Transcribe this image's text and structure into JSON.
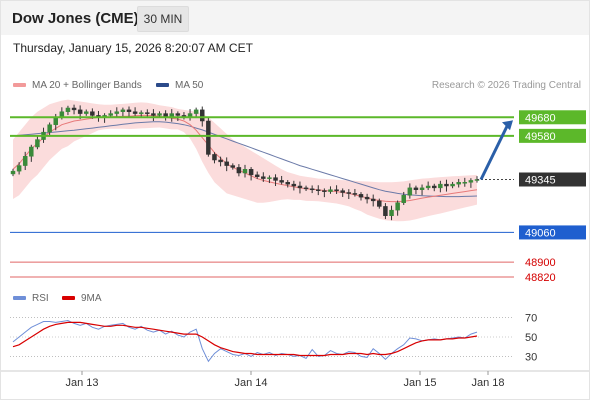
{
  "header": {
    "title": "Dow Jones (CME)",
    "timeframe": "30 MIN",
    "datetime": "Thursday, January 15, 2026 8:20:07 AM CET"
  },
  "legend": {
    "ma_bb": "MA 20 + Bollinger Bands",
    "ma50": "MA 50",
    "credit": "Research © 2026 Trading Central"
  },
  "rsi_legend": {
    "rsi": "RSI",
    "ma": "9MA"
  },
  "colors": {
    "up": "#3a8a3a",
    "down": "#333333",
    "resistance": "#5cb82a",
    "support": "#1f5fcf",
    "lower_support": "#e06666",
    "bb_fill": "#fbdcdc",
    "ma20": "#e77a7a",
    "ma50": "#6b7aa8",
    "rsi": "#6f8fd8",
    "rsi_ma": "#d80000",
    "current": "#333333"
  },
  "chart_data": [
    {
      "type": "candlestick",
      "title": "Dow Jones (CME)",
      "timeframe": "30 MIN",
      "ylim": [
        48750,
        49800
      ],
      "x_labels": [
        "Jan 13",
        "Jan 14",
        "Jan 15",
        "Jan 18"
      ],
      "levels": [
        {
          "label": "49680",
          "value": 49680,
          "kind": "resistance"
        },
        {
          "label": "49580",
          "value": 49580,
          "kind": "resistance"
        },
        {
          "label": "49345",
          "value": 49345,
          "kind": "current"
        },
        {
          "label": "49060",
          "value": 49060,
          "kind": "support"
        },
        {
          "label": "48900",
          "value": 48900,
          "kind": "lower_support"
        },
        {
          "label": "48820",
          "value": 48820,
          "kind": "lower_support"
        }
      ],
      "forecast": {
        "from": 49345,
        "to": 49680,
        "direction": "up"
      },
      "close_series": [
        49390,
        49420,
        49470,
        49520,
        49560,
        49600,
        49640,
        49680,
        49710,
        49730,
        49720,
        49700,
        49710,
        49690,
        49680,
        49690,
        49700,
        49710,
        49720,
        49710,
        49700,
        49705,
        49700,
        49690,
        49700,
        49680,
        49700,
        49690,
        49680,
        49700,
        49720,
        49660,
        49480,
        49450,
        49440,
        49420,
        49410,
        49380,
        49400,
        49370,
        49360,
        49350,
        49355,
        49340,
        49330,
        49320,
        49310,
        49300,
        49295,
        49290,
        49285,
        49280,
        49290,
        49285,
        49275,
        49270,
        49265,
        49250,
        49240,
        49230,
        49200,
        49150,
        49180,
        49220,
        49260,
        49300,
        49290,
        49300,
        49310,
        49300,
        49320,
        49310,
        49320,
        49330,
        49330,
        49340,
        49345
      ],
      "ma20": [
        49400,
        49430,
        49470,
        49510,
        49540,
        49570,
        49600,
        49620,
        49640,
        49650,
        49660,
        49665,
        49670,
        49675,
        49680,
        49682,
        49683,
        49684,
        49685,
        49686,
        49688,
        49690,
        49690,
        49688,
        49685,
        49680,
        49675,
        49670,
        49660,
        49640,
        49610,
        49570,
        49530,
        49490,
        49460,
        49430,
        49410,
        49395,
        49380,
        49365,
        49350,
        49340,
        49332,
        49325,
        49318,
        49312,
        49305,
        49300,
        49295,
        49292,
        49289,
        49286,
        49283,
        49280,
        49275,
        49270,
        49262,
        49255,
        49245,
        49238,
        49232,
        49228,
        49226,
        49226,
        49228,
        49232,
        49238,
        49245,
        49250,
        49255,
        49260,
        49265,
        49270,
        49275,
        49280,
        49285,
        49290
      ],
      "bb_upper": [
        49560,
        49600,
        49640,
        49680,
        49710,
        49730,
        49750,
        49760,
        49770,
        49775,
        49770,
        49765,
        49760,
        49755,
        49750,
        49748,
        49748,
        49750,
        49752,
        49755,
        49758,
        49760,
        49758,
        49752,
        49745,
        49740,
        49735,
        49725,
        49720,
        49715,
        49710,
        49700,
        49680,
        49650,
        49620,
        49590,
        49560,
        49540,
        49520,
        49500,
        49480,
        49460,
        49440,
        49420,
        49400,
        49385,
        49375,
        49365,
        49360,
        49355,
        49350,
        49348,
        49346,
        49344,
        49342,
        49340,
        49338,
        49336,
        49334,
        49332,
        49330,
        49330,
        49330,
        49332,
        49335,
        49340,
        49345,
        49350,
        49352,
        49355,
        49358,
        49360,
        49362,
        49364,
        49366,
        49368,
        49370
      ],
      "bb_lower": [
        49240,
        49260,
        49300,
        49340,
        49370,
        49410,
        49450,
        49480,
        49510,
        49525,
        49550,
        49565,
        49580,
        49595,
        49610,
        49616,
        49618,
        49618,
        49618,
        49617,
        49618,
        49620,
        49622,
        49624,
        49625,
        49620,
        49615,
        49615,
        49600,
        49565,
        49510,
        49440,
        49380,
        49330,
        49300,
        49270,
        49260,
        49250,
        49240,
        49230,
        49220,
        49220,
        49224,
        49230,
        49236,
        49239,
        49235,
        49235,
        49230,
        49229,
        49228,
        49224,
        49220,
        49216,
        49208,
        49200,
        49186,
        49174,
        49156,
        49144,
        49134,
        49126,
        49122,
        49120,
        49121,
        49124,
        49131,
        49140,
        49148,
        49155,
        49162,
        49170,
        49178,
        49186,
        49194,
        49202,
        49210
      ],
      "ma50": [
        49580,
        49583,
        49586,
        49589,
        49592,
        49595,
        49598,
        49601,
        49604,
        49607,
        49610,
        49614,
        49618,
        49622,
        49626,
        49630,
        49634,
        49638,
        49642,
        49646,
        49650,
        49652,
        49654,
        49656,
        49656,
        49654,
        49650,
        49646,
        49640,
        49632,
        49622,
        49612,
        49600,
        49588,
        49576,
        49564,
        49552,
        49540,
        49528,
        49516,
        49504,
        49492,
        49480,
        49468,
        49456,
        49444,
        49432,
        49420,
        49410,
        49400,
        49390,
        49380,
        49370,
        49360,
        49350,
        49340,
        49330,
        49320,
        49310,
        49300,
        49290,
        49282,
        49276,
        49270,
        49266,
        49262,
        49260,
        49258,
        49256,
        49255,
        49254,
        49253,
        49253,
        49253,
        49254,
        49255,
        49256
      ]
    },
    {
      "type": "line",
      "title": "RSI",
      "ylim": [
        15,
        85
      ],
      "y_ticks": [
        "70",
        "50",
        "30"
      ],
      "series": [
        {
          "name": "RSI",
          "values": [
            45,
            50,
            55,
            60,
            63,
            66,
            66,
            65,
            66,
            67,
            64,
            62,
            64,
            60,
            58,
            61,
            62,
            63,
            64,
            60,
            58,
            61,
            57,
            55,
            57,
            53,
            56,
            52,
            50,
            55,
            58,
            38,
            25,
            33,
            38,
            35,
            32,
            31,
            33,
            30,
            34,
            32,
            34,
            31,
            33,
            32,
            30,
            31,
            28,
            37,
            30,
            31,
            36,
            33,
            32,
            35,
            34,
            30,
            29,
            38,
            33,
            27,
            33,
            38,
            42,
            49,
            48,
            46,
            47,
            48,
            47,
            48,
            49,
            50,
            49,
            53,
            55
          ]
        },
        {
          "name": "9MA",
          "values": [
            40,
            42,
            46,
            50,
            54,
            58,
            61,
            63,
            64,
            65,
            65,
            65,
            64,
            63,
            62,
            61,
            61,
            62,
            62,
            61,
            60,
            60,
            59,
            58,
            57,
            56,
            55,
            54,
            53,
            53,
            53,
            50,
            46,
            42,
            39,
            37,
            35,
            34,
            33,
            33,
            32,
            32,
            32,
            32,
            32,
            32,
            32,
            31,
            31,
            31,
            31,
            31,
            32,
            32,
            32,
            33,
            33,
            33,
            32,
            33,
            32,
            32,
            33,
            35,
            38,
            41,
            44,
            46,
            47,
            47,
            47,
            48,
            48,
            49,
            49,
            50,
            51
          ]
        }
      ]
    }
  ]
}
